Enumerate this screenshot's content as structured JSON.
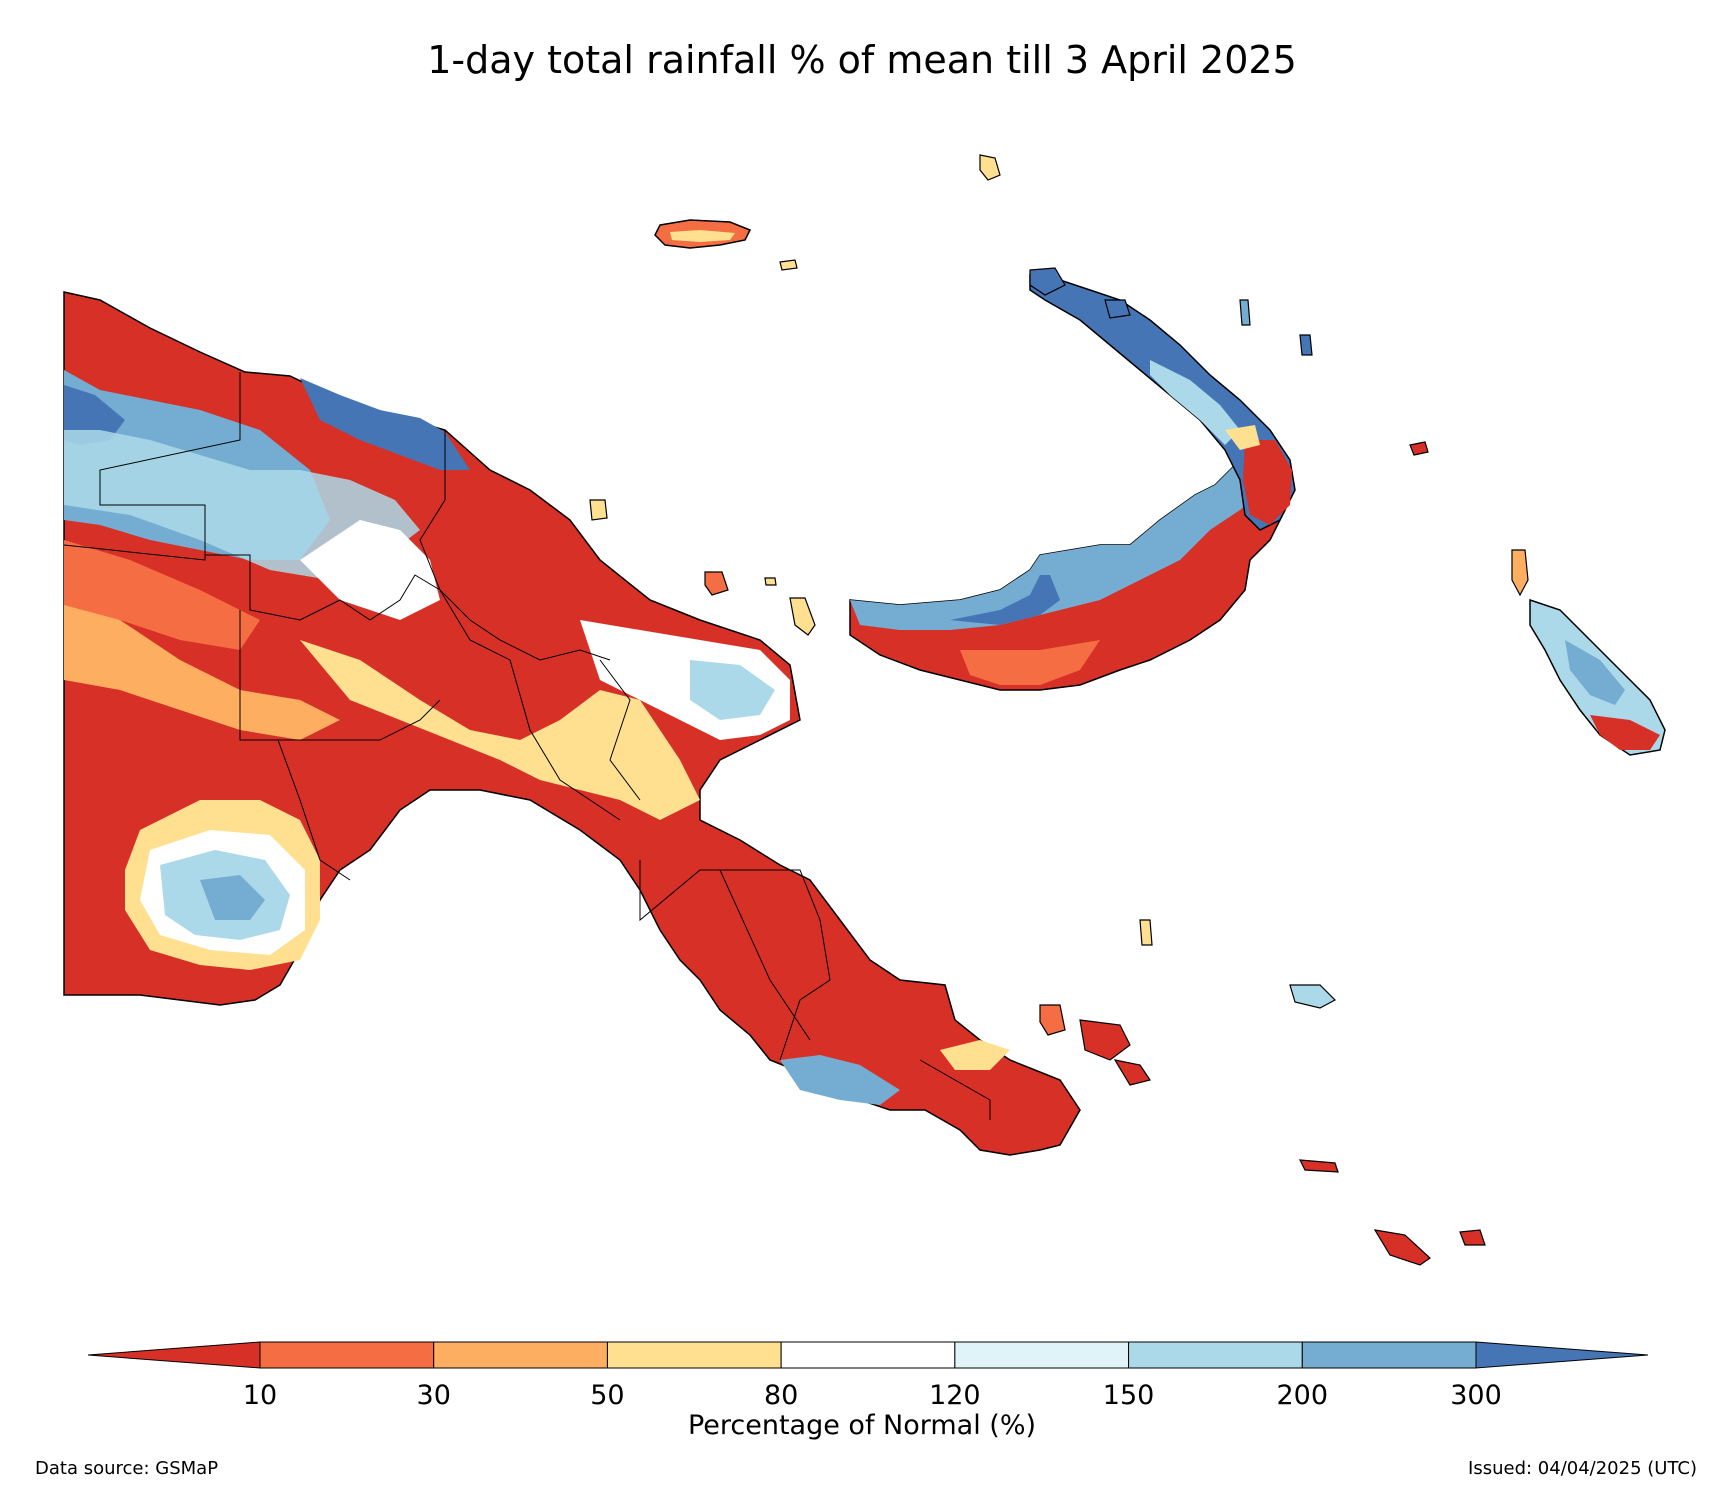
{
  "title": "1-day total rainfall % of mean till 3 April 2025",
  "colorbar": {
    "label": "Percentage of Normal (%)",
    "ticks": [
      "10",
      "30",
      "50",
      "80",
      "120",
      "150",
      "200",
      "300"
    ],
    "bins": [
      {
        "range": "<10",
        "color": "#d73027"
      },
      {
        "range": "10-30",
        "color": "#f46d43"
      },
      {
        "range": "30-50",
        "color": "#fdae61"
      },
      {
        "range": "50-80",
        "color": "#fee090"
      },
      {
        "range": "80-120",
        "color": "#ffffff"
      },
      {
        "range": "120-150",
        "color": "#e0f3f8"
      },
      {
        "range": "150-200",
        "color": "#abd9e9"
      },
      {
        "range": "200-300",
        "color": "#74add1"
      },
      {
        "range": ">300",
        "color": "#4575b4"
      }
    ]
  },
  "footer": {
    "source": "Data source: GSMaP",
    "issued": "Issued: 04/04/2025 (UTC)"
  }
}
